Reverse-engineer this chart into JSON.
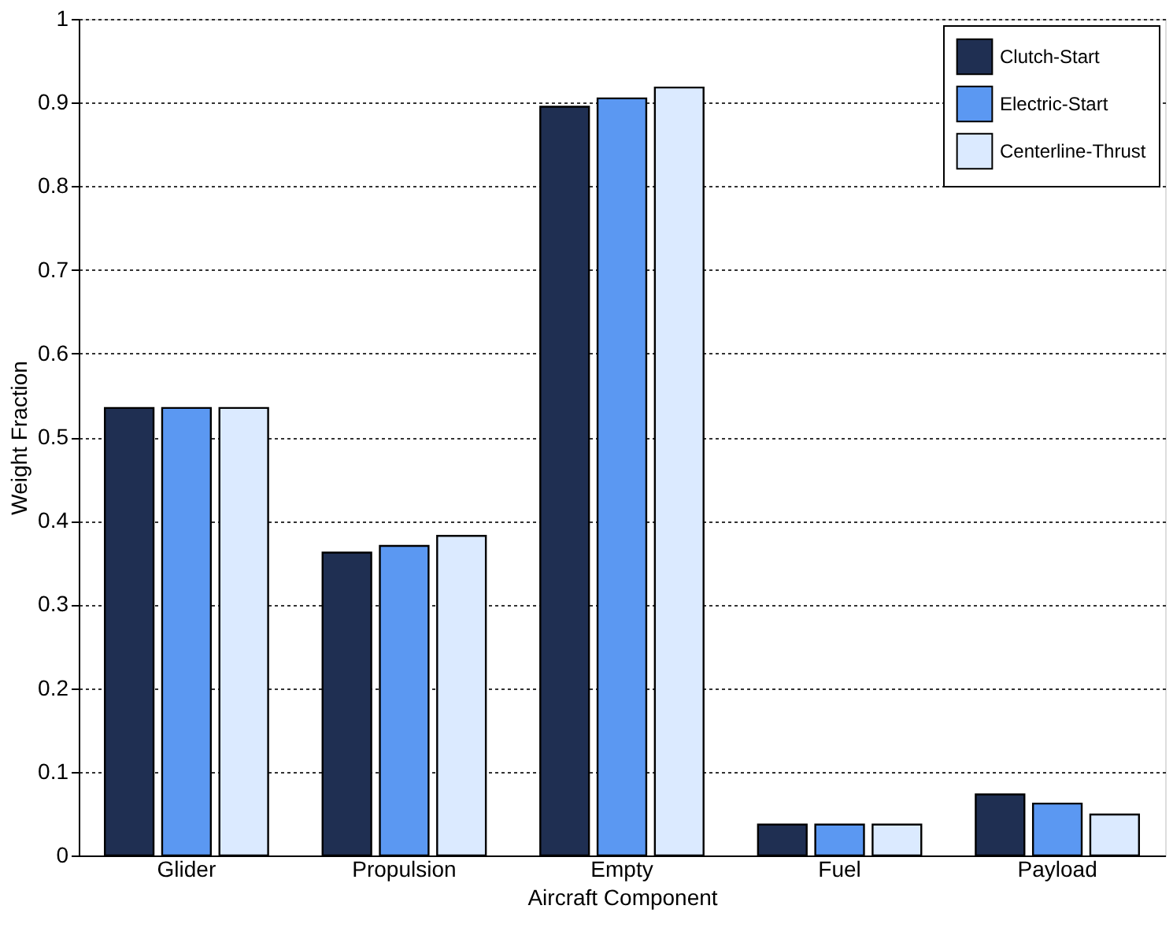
{
  "chart_data": {
    "type": "bar",
    "xlabel": "Aircraft Component",
    "ylabel": "Weight Fraction",
    "categories": [
      "Glider",
      "Propulsion",
      "Empty",
      "Fuel",
      "Payload"
    ],
    "series": [
      {
        "name": "Clutch-Start",
        "color": "#1f2f52",
        "values": [
          0.535,
          0.362,
          0.895,
          0.037,
          0.073
        ]
      },
      {
        "name": "Electric-Start",
        "color": "#5b98f2",
        "values": [
          0.535,
          0.37,
          0.905,
          0.037,
          0.062
        ]
      },
      {
        "name": "Centerline-Thrust",
        "color": "#dbeaff",
        "values": [
          0.535,
          0.382,
          0.918,
          0.037,
          0.049
        ]
      }
    ],
    "ylim": [
      0,
      1
    ],
    "yticks": [
      0,
      0.1,
      0.2,
      0.3,
      0.4,
      0.5,
      0.6,
      0.7,
      0.8,
      0.9,
      1
    ],
    "grid": "y",
    "legend": "top right"
  }
}
